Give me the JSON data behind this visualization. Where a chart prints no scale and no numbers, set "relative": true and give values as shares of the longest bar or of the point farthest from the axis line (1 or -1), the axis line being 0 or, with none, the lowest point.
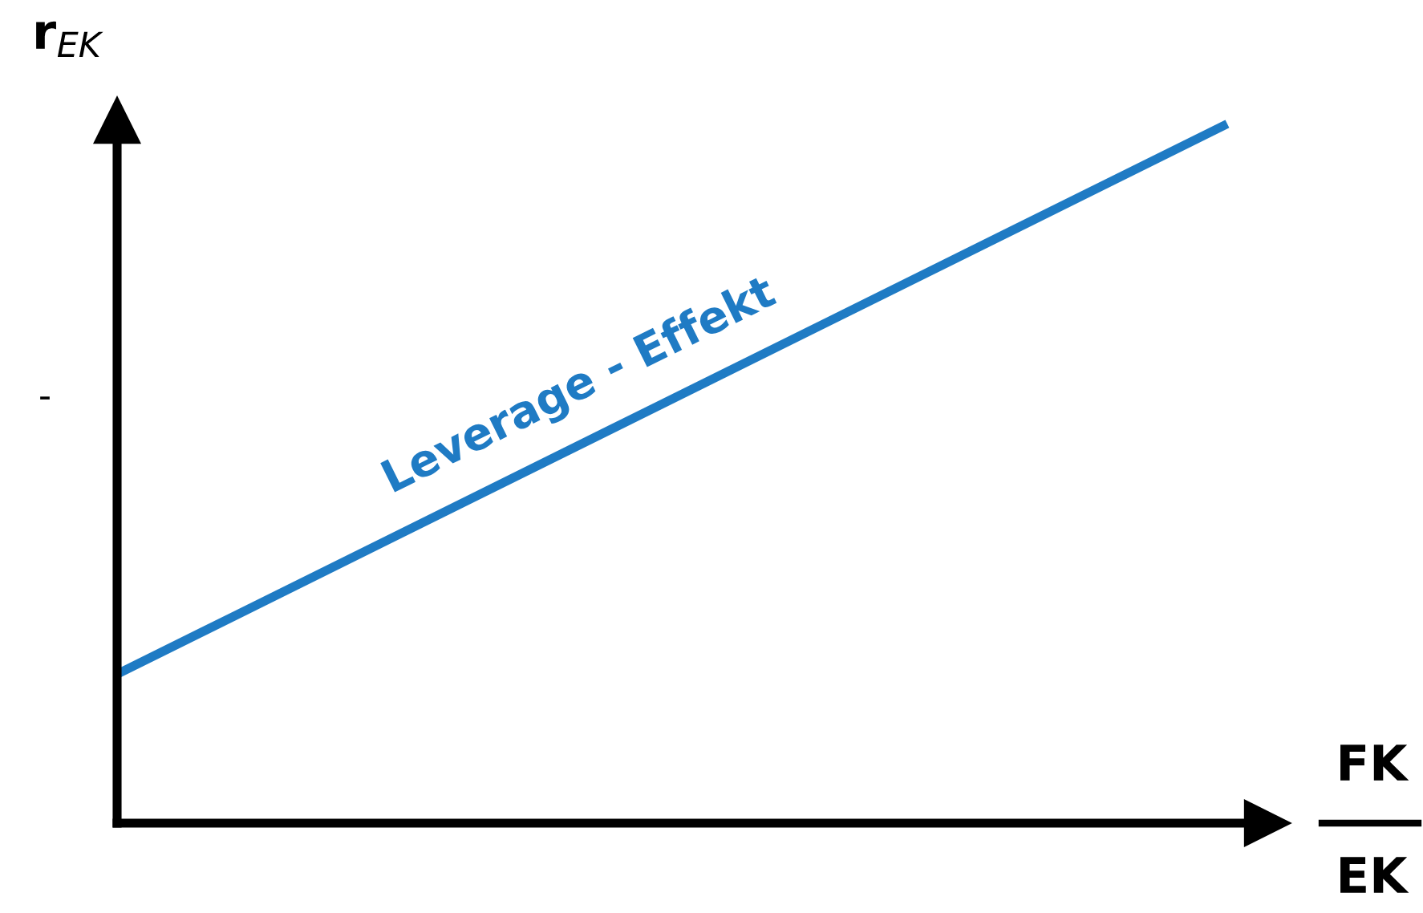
{
  "chart_data": {
    "type": "line",
    "relative": true,
    "ylabel": "r$_{EK}$",
    "xlabel": "FK\nEK",
    "categories": [
      null,
      null
    ],
    "series": [
      {
        "name": "Leverage - Effekt",
        "color": "#1f7bc4",
        "values": [
          0.213,
          1
        ]
      }
    ],
    "annotations": [
      "-"
    ]
  }
}
